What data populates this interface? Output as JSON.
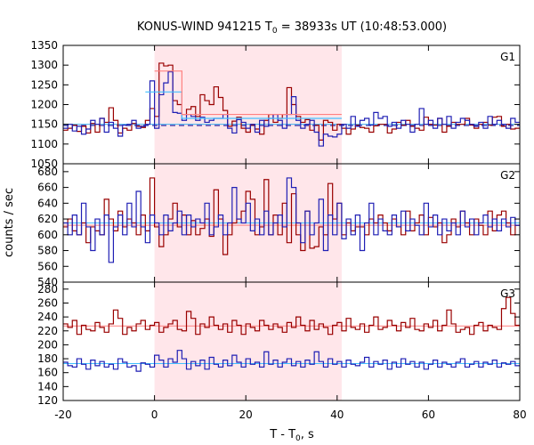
{
  "chart_data": {
    "type": "line",
    "title_main": "KONUS-WIND 941215 T",
    "title_sub": "0",
    "title_rest": " = 38933s UT (10:48:53.000)",
    "xlabel_main": "T - T",
    "xlabel_sub": "0",
    "xlabel_rest": ", s",
    "ylabel": "counts / sec",
    "xlim": [
      -20,
      80
    ],
    "xticks": [
      -20,
      0,
      20,
      40,
      60,
      80
    ],
    "highlight_interval": [
      0,
      41
    ],
    "colors": {
      "red": "#990000",
      "blue": "#1f1fb4",
      "light_red": "#ff8080",
      "light_blue": "#40c0ff",
      "dash": "#000099",
      "shade": "#ffe6ea"
    },
    "panels": [
      {
        "name": "G1",
        "ylim": [
          1050,
          1350
        ],
        "yticks": [
          1050,
          1100,
          1150,
          1200,
          1250,
          1300,
          1350
        ],
        "background": {
          "red": 1150,
          "blue": 1150,
          "dashed": 1147
        },
        "series": [
          {
            "name": "",
            "color": "red",
            "x0": -20,
            "dx": 1,
            "values": [
              1135,
              1140,
              1148,
              1132,
              1145,
              1128,
              1152,
              1130,
              1165,
              1155,
              1192,
              1160,
              1128,
              1140,
              1135,
              1152,
              1145,
              1142,
              1160,
              1190,
              1170,
              1305,
              1298,
              1300,
              1210,
              1200,
              1175,
              1188,
              1195,
              1170,
              1225,
              1210,
              1200,
              1245,
              1218,
              1185,
              1145,
              1158,
              1168,
              1140,
              1130,
              1148,
              1138,
              1125,
              1160,
              1175,
              1155,
              1165,
              1175,
              1243,
              1200,
              1170,
              1155,
              1162,
              1135,
              1148,
              1110,
              1160,
              1155,
              1135,
              1150,
              1140,
              1125,
              1138,
              1148,
              1142,
              1140,
              1130,
              1146,
              1150,
              1150,
              1128,
              1138,
              1155,
              1148,
              1160,
              1145,
              1140,
              1135,
              1168,
              1150,
              1148,
              1165,
              1130,
              1145,
              1155,
              1150,
              1150,
              1165,
              1148,
              1140,
              1150,
              1155,
              1148,
              1168,
              1170,
              1145,
              1150,
              1138,
              1140
            ]
          },
          {
            "name": "",
            "color": "blue",
            "x0": -20,
            "dx": 1,
            "values": [
              1140,
              1150,
              1133,
              1145,
              1125,
              1138,
              1160,
              1150,
              1165,
              1130,
              1155,
              1140,
              1120,
              1148,
              1150,
              1160,
              1140,
              1145,
              1150,
              1260,
              1140,
              1225,
              1255,
              1283,
              1180,
              1178,
              1160,
              1175,
              1170,
              1160,
              1168,
              1155,
              1160,
              1165,
              1165,
              1175,
              1140,
              1128,
              1162,
              1155,
              1140,
              1150,
              1130,
              1160,
              1145,
              1165,
              1175,
              1160,
              1140,
              1175,
              1220,
              1160,
              1140,
              1150,
              1160,
              1130,
              1095,
              1125,
              1120,
              1118,
              1125,
              1150,
              1140,
              1170,
              1145,
              1160,
              1165,
              1148,
              1180,
              1165,
              1170,
              1145,
              1155,
              1140,
              1160,
              1150,
              1130,
              1150,
              1190,
              1150,
              1160,
              1140,
              1165,
              1150,
              1170,
              1140,
              1155,
              1165,
              1160,
              1150,
              1145,
              1155,
              1140,
              1170,
              1150,
              1160,
              1150,
              1140,
              1165,
              1155
            ]
          },
          {
            "name": "",
            "color": "light_blue",
            "x0": -2,
            "dx": 1,
            "values": [
              1232,
              1232,
              1232,
              1232,
              1232,
              1232,
              1232,
              1232,
              1165,
              1165,
              1165,
              1165,
              1165,
              1165,
              1165,
              1165,
              1165,
              1165,
              1165,
              1165,
              1165,
              1165,
              1165,
              1165,
              1165,
              1165,
              1165,
              1165,
              1165,
              1165,
              1165,
              1165,
              1165,
              1165,
              1165,
              1165,
              1165,
              1165,
              1165,
              1165,
              1165,
              1165,
              1165
            ]
          },
          {
            "name": "",
            "color": "light_red",
            "x0": 0,
            "dx": 1,
            "values": [
              1285,
              1285,
              1285,
              1285,
              1285,
              1285,
              1175,
              1175,
              1175,
              1175,
              1175,
              1175,
              1175,
              1175,
              1175,
              1175,
              1175,
              1175,
              1175,
              1175,
              1175,
              1175,
              1175,
              1175,
              1175,
              1175,
              1175,
              1175,
              1175,
              1175,
              1175,
              1175,
              1175,
              1175,
              1175,
              1175,
              1175,
              1175,
              1175,
              1175,
              1175
            ]
          }
        ]
      },
      {
        "name": "G2",
        "ylim": [
          540,
          690
        ],
        "yticks": [
          540,
          560,
          580,
          600,
          620,
          640,
          660,
          680
        ],
        "background": {
          "red": 612,
          "blue": 615
        },
        "series": [
          {
            "name": "",
            "color": "red",
            "x0": -20,
            "dx": 1,
            "values": [
              610,
              620,
              605,
              600,
              615,
              590,
              610,
              605,
              600,
              645,
              620,
              605,
              630,
              610,
              620,
              615,
              600,
              625,
              605,
              672,
              610,
              585,
              600,
              620,
              640,
              610,
              625,
              600,
              618,
              600,
              608,
              620,
              598,
              657,
              620,
              575,
              600,
              615,
              620,
              630,
              655,
              645,
              600,
              610,
              670,
              600,
              625,
              600,
              640,
              590,
              652,
              600,
              580,
              630,
              583,
              585,
              610,
              600,
              665,
              620,
              640,
              600,
              615,
              605,
              610,
              610,
              600,
              620,
              615,
              625,
              615,
              605,
              620,
              610,
              600,
              630,
              605,
              615,
              625,
              600,
              622,
              610,
              615,
              590,
              600,
              620,
              610,
              630,
              615,
              600,
              620,
              612,
              600,
              630,
              605,
              625,
              630,
              615,
              600,
              612
            ]
          },
          {
            "name": "",
            "color": "blue",
            "x0": -20,
            "dx": 1,
            "values": [
              615,
              600,
              625,
              600,
              640,
              610,
              580,
              620,
              600,
              625,
              565,
              610,
              625,
              600,
              640,
              610,
              655,
              610,
              590,
              625,
              615,
              600,
              625,
              605,
              615,
              630,
              600,
              625,
              610,
              620,
              615,
              640,
              600,
              610,
              625,
              600,
              615,
              660,
              620,
              615,
              640,
              605,
              620,
              600,
              630,
              600,
              615,
              625,
              610,
              672,
              660,
              615,
              590,
              630,
              600,
              615,
              645,
              580,
              625,
              600,
              640,
              595,
              620,
              600,
              625,
              580,
              615,
              640,
              600,
              620,
              605,
              600,
              625,
              610,
              630,
              605,
              620,
              612,
              600,
              640,
              610,
              625,
              600,
              620,
              605,
              615,
              600,
              630,
              610,
              620,
              600,
              615,
              625,
              610,
              620,
              605,
              620,
              610,
              622,
              612
            ]
          }
        ]
      },
      {
        "name": "G3",
        "ylim": [
          120,
          290
        ],
        "yticks": [
          120,
          140,
          160,
          180,
          200,
          220,
          240,
          260,
          280
        ],
        "background": {
          "red": 227,
          "blue": 173
        },
        "series": [
          {
            "name": "",
            "color": "red",
            "x0": -20,
            "dx": 1,
            "values": [
              230,
              225,
              235,
              215,
              228,
              222,
              220,
              232,
              225,
              218,
              230,
              250,
              238,
              215,
              225,
              220,
              230,
              235,
              222,
              228,
              232,
              218,
              225,
              230,
              235,
              222,
              220,
              248,
              238,
              215,
              230,
              225,
              240,
              228,
              222,
              230,
              218,
              235,
              228,
              215,
              230,
              225,
              220,
              235,
              228,
              222,
              230,
              225,
              218,
              232,
              225,
              240,
              228,
              220,
              235,
              222,
              230,
              225,
              215,
              228,
              232,
              220,
              238,
              225,
              222,
              230,
              218,
              228,
              240,
              222,
              225,
              235,
              228,
              220,
              232,
              225,
              238,
              222,
              220,
              230,
              225,
              235,
              220,
              228,
              250,
              230,
              218,
              222,
              225,
              215,
              228,
              232,
              220,
              228,
              225,
              222,
              252,
              268,
              245,
              228
            ]
          },
          {
            "name": "",
            "color": "blue",
            "x0": -20,
            "dx": 1,
            "values": [
              175,
              170,
              168,
              180,
              172,
              165,
              178,
              170,
              176,
              168,
              172,
              165,
              180,
              175,
              168,
              170,
              162,
              174,
              172,
              168,
              185,
              178,
              168,
              180,
              175,
              192,
              180,
              165,
              176,
              170,
              178,
              165,
              182,
              172,
              168,
              178,
              170,
              185,
              175,
              168,
              180,
              172,
              175,
              168,
              190,
              172,
              178,
              168,
              175,
              180,
              170,
              176,
              168,
              178,
              172,
              190,
              176,
              168,
              180,
              172,
              176,
              168,
              178,
              172,
              170,
              175,
              182,
              168,
              176,
              172,
              178,
              165,
              175,
              168,
              180,
              172,
              176,
              168,
              175,
              165,
              172,
              178,
              168,
              175,
              172,
              168,
              175,
              180,
              168,
              172,
              176,
              168,
              175,
              172,
              178,
              168,
              174,
              172,
              176,
              170
            ]
          }
        ]
      }
    ]
  }
}
